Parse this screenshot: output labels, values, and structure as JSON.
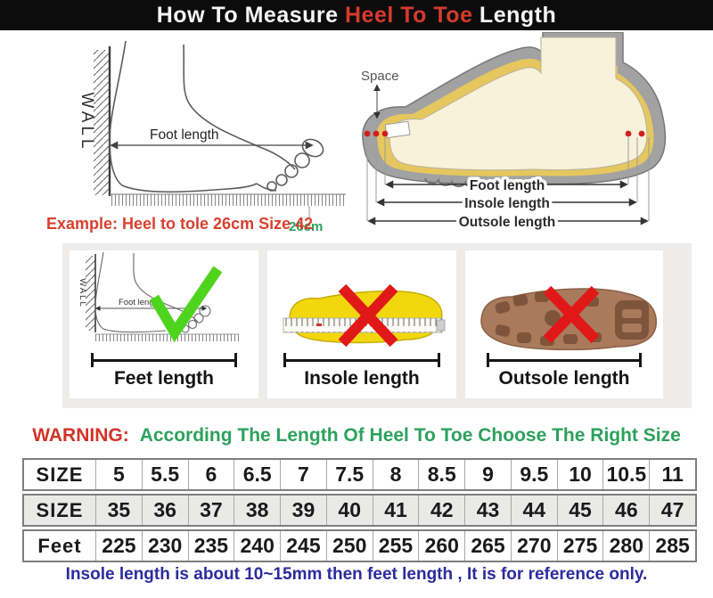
{
  "title": {
    "part1": "How To Measure ",
    "highlight": "Heel To Toe",
    "part2": " Length"
  },
  "measure_diagram": {
    "wall_label": "WALL",
    "foot_length_label": "Foot length",
    "ruler_mark": "26cm",
    "example_text": "Example: Heel to tole 26cm Size 42"
  },
  "shoe_diagram": {
    "space_label": "Space",
    "dim_labels": [
      "Foot length",
      "Insole length",
      "Outsole length"
    ]
  },
  "method_cards": [
    {
      "label": "Feet length",
      "verdict": "correct",
      "wall_label": "WALL",
      "foot_length_label": "Foot length"
    },
    {
      "label": "Insole length",
      "verdict": "wrong"
    },
    {
      "label": "Outsole length",
      "verdict": "wrong"
    }
  ],
  "warning": {
    "prefix": "WARNING:",
    "message": "According The Length Of Heel To Toe Choose The Right Size"
  },
  "size_table": {
    "rows": [
      {
        "header": "SIZE",
        "values": [
          "5",
          "5.5",
          "6",
          "6.5",
          "7",
          "7.5",
          "8",
          "8.5",
          "9",
          "9.5",
          "10",
          "10.5",
          "11"
        ]
      },
      {
        "header": "SIZE",
        "values": [
          "35",
          "36",
          "37",
          "38",
          "39",
          "40",
          "41",
          "42",
          "43",
          "44",
          "45",
          "46",
          "47"
        ]
      },
      {
        "header": "Feet",
        "values": [
          "225",
          "230",
          "235",
          "240",
          "245",
          "250",
          "255",
          "260",
          "265",
          "270",
          "275",
          "280",
          "285"
        ]
      }
    ]
  },
  "footer_note": "Insole length is about 10~15mm then feet length , It is for reference only.",
  "colors": {
    "title_red": "#d63a2e",
    "warning_red": "#d13427",
    "warning_green": "#2da15c",
    "note_blue": "#2b2b9e",
    "check_green": "#4fd41d",
    "cross_red": "#e11818",
    "insole_yellow": "#f2d70e",
    "outsole_brown": "#aa7a5c",
    "shoe_gray": "#a2a2a2"
  }
}
